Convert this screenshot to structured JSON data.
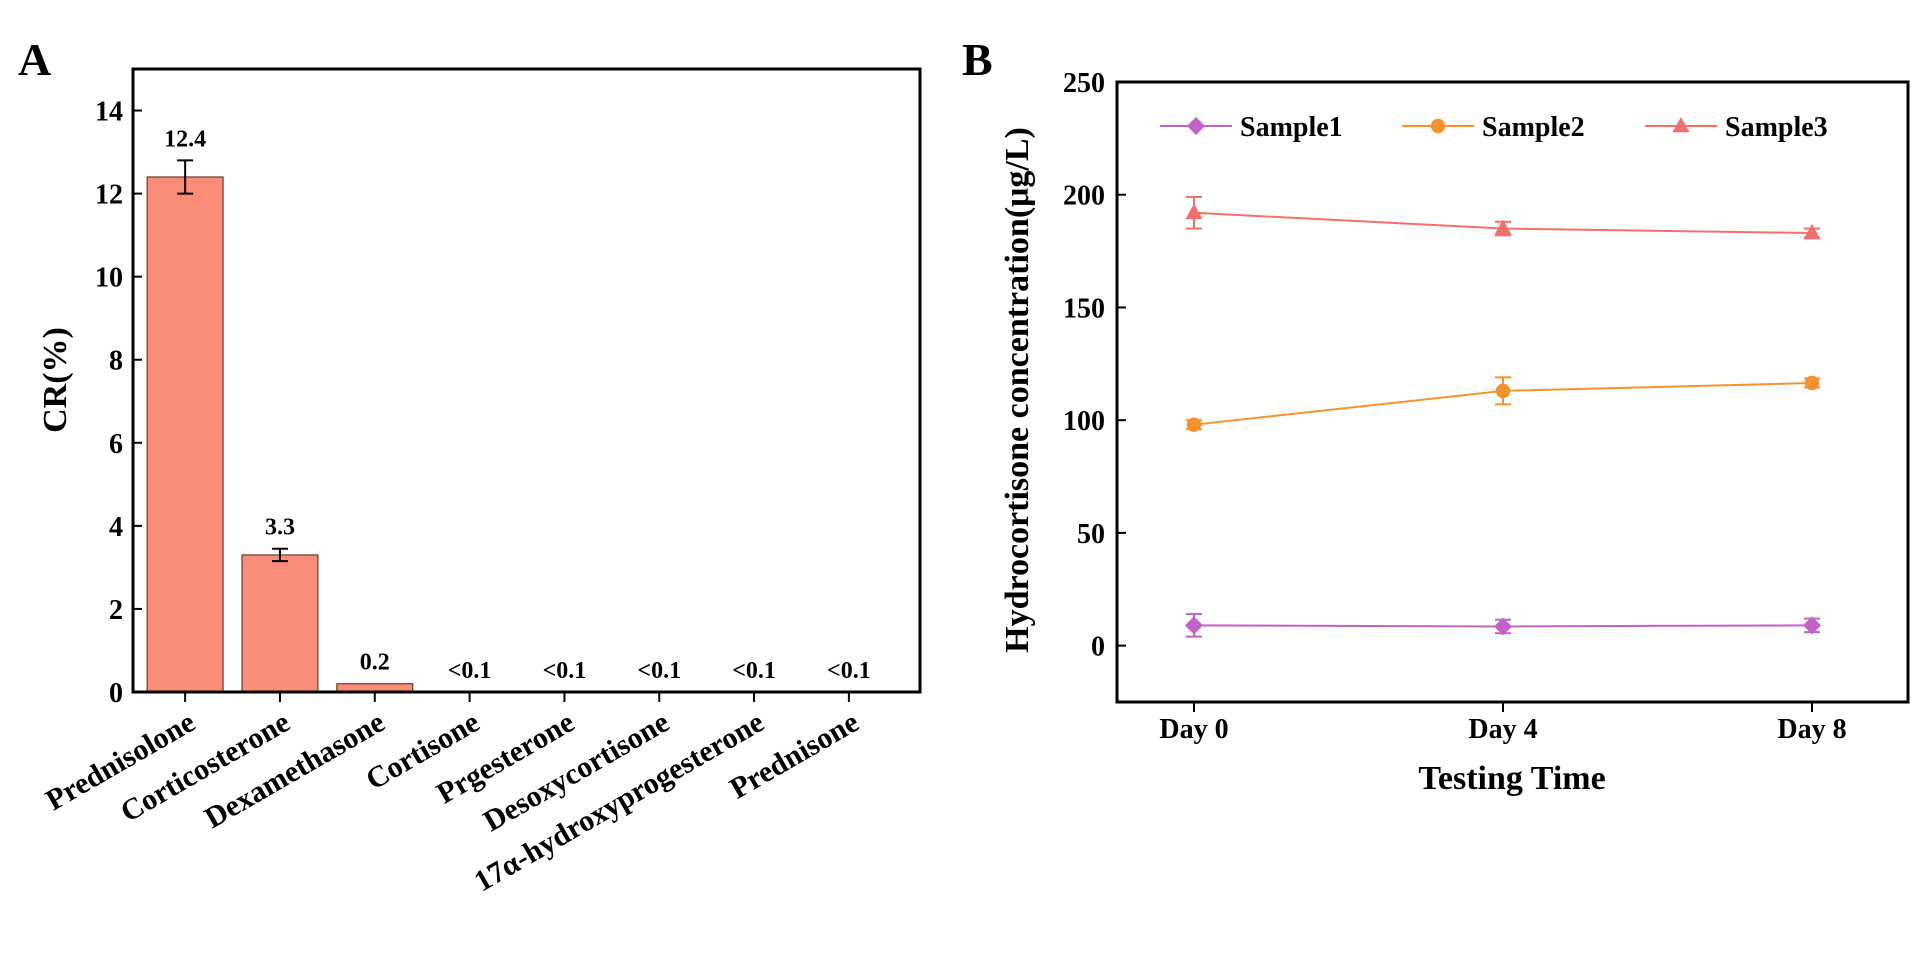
{
  "figure": {
    "colors": {
      "bar": "#FA8C78",
      "sample1": "#C062C8",
      "sample2": "#F5922E",
      "sample3": "#F2706C",
      "axis": "#000000"
    }
  },
  "chart_data": [
    {
      "panel_label": "A",
      "type": "bar",
      "categories": [
        "Prednisolone",
        "Corticosterone",
        "Dexamethasone",
        "Cortisone",
        "Prgesterone",
        "Desoxycortisone",
        "17α-hydroxyprogesterone",
        "Prednisone"
      ],
      "values": [
        12.4,
        3.3,
        0.2,
        0.05,
        0.05,
        0.05,
        0.05,
        0.05
      ],
      "errors": [
        0.4,
        0.15,
        0,
        0,
        0,
        0,
        0,
        0
      ],
      "data_labels": [
        "12.4",
        "3.3",
        "0.2",
        "<0.1",
        "<0.1",
        "<0.1",
        "<0.1",
        "<0.1"
      ],
      "title": "",
      "xlabel": "",
      "ylabel": "CR(%)",
      "ylim": [
        0,
        15
      ],
      "yticks": [
        0,
        2,
        4,
        6,
        8,
        10,
        12,
        14
      ]
    },
    {
      "panel_label": "B",
      "type": "line",
      "x": [
        "Day 0",
        "Day 4",
        "Day 8"
      ],
      "series": [
        {
          "name": "Sample1",
          "marker": "diamond",
          "values": [
            9,
            8.5,
            9
          ],
          "errors": [
            5,
            3,
            3
          ]
        },
        {
          "name": "Sample2",
          "marker": "circle",
          "values": [
            98,
            113,
            116.5
          ],
          "errors": [
            2,
            6,
            2
          ]
        },
        {
          "name": "Sample3",
          "marker": "triangle",
          "values": [
            192,
            185,
            183
          ],
          "errors": [
            7,
            3,
            2
          ]
        }
      ],
      "title": "",
      "xlabel": "Testing Time",
      "ylabel": "Hydrocortisone concentration(μg/L)",
      "ylim": [
        -25,
        250
      ],
      "yticks": [
        0,
        50,
        100,
        150,
        200,
        250
      ],
      "legend": "top"
    }
  ]
}
